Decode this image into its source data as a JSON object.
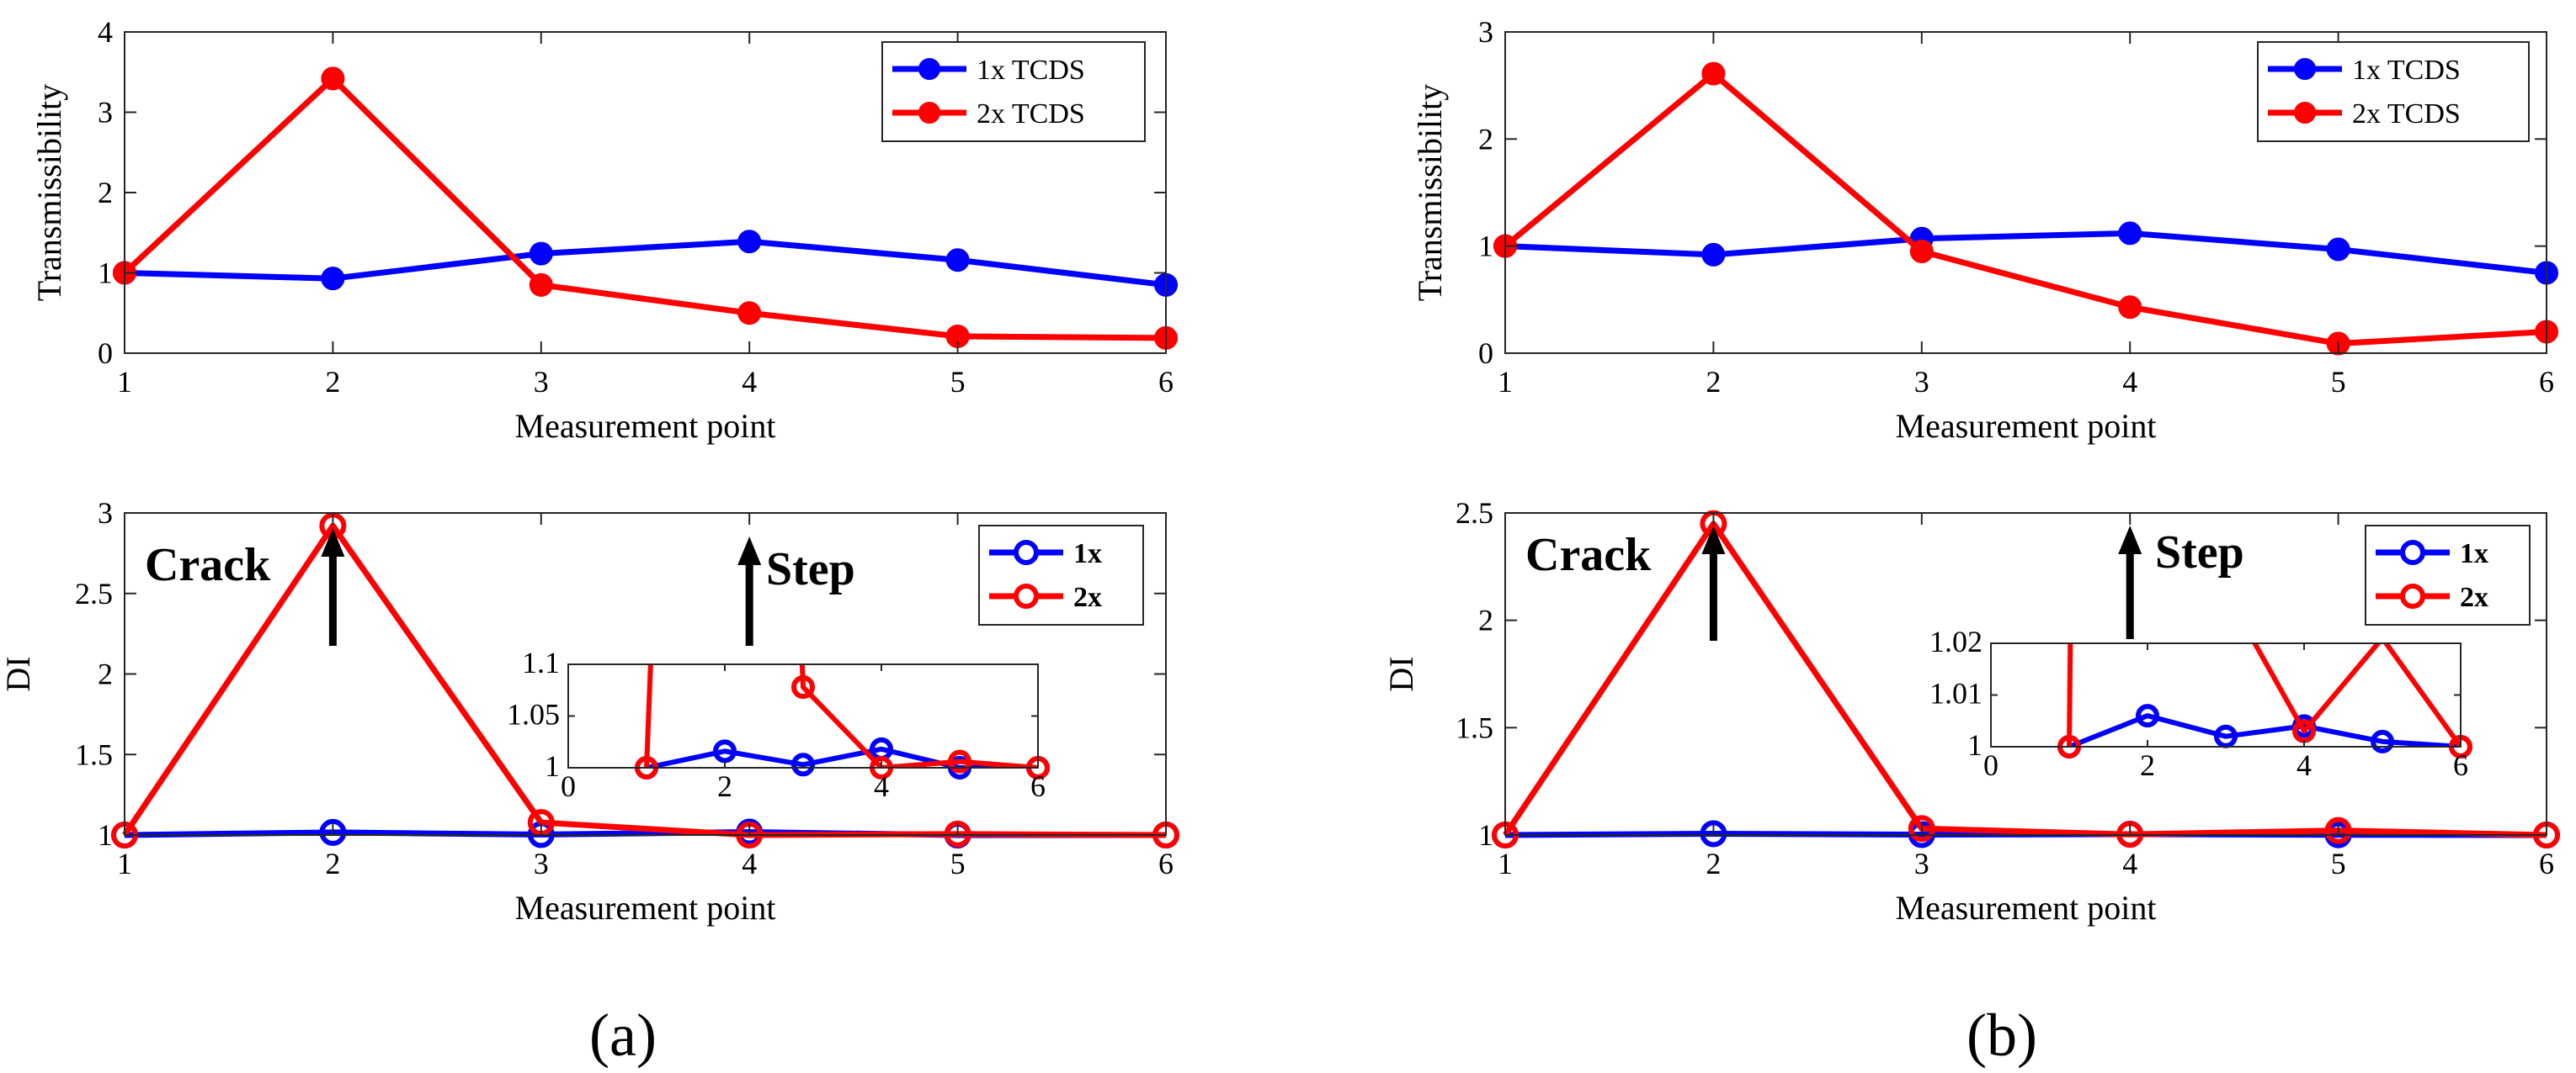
{
  "figure_labels": [
    "(a)",
    "(b)"
  ],
  "chart_data": [
    {
      "id": "a-top",
      "type": "line",
      "title": "",
      "xlabel": "Measurement point",
      "ylabel": "Transmissibility",
      "xlim": [
        1,
        6
      ],
      "ylim": [
        0,
        4
      ],
      "xticks": [
        "1",
        "2",
        "3",
        "4",
        "5",
        "6"
      ],
      "yticks": [
        "0",
        "1",
        "2",
        "3",
        "4"
      ],
      "legend_position": "top-right",
      "legend_style": "normal",
      "series": [
        {
          "name": "1x TCDS",
          "color": "#0000ff",
          "marker": "filled",
          "x": [
            1,
            2,
            3,
            4,
            5,
            6
          ],
          "y": [
            1.0,
            0.93,
            1.24,
            1.39,
            1.16,
            0.85
          ]
        },
        {
          "name": "2x TCDS",
          "color": "#ff0000",
          "marker": "filled",
          "x": [
            1,
            2,
            3,
            4,
            5,
            6
          ],
          "y": [
            1.0,
            3.42,
            0.85,
            0.5,
            0.21,
            0.19
          ]
        }
      ]
    },
    {
      "id": "a-bottom",
      "type": "line",
      "title": "",
      "xlabel": "Measurement point",
      "ylabel": "DI",
      "xlim": [
        1,
        6
      ],
      "ylim": [
        1,
        3
      ],
      "xticks": [
        "1",
        "2",
        "3",
        "4",
        "5",
        "6"
      ],
      "yticks": [
        "1",
        "1.5",
        "2",
        "2.5",
        "3"
      ],
      "legend_position": "top-right",
      "legend_style": "bold",
      "annotations": [
        {
          "text": "Crack",
          "arrow_x": 2
        },
        {
          "text": "Step",
          "arrow_x": 4
        }
      ],
      "series": [
        {
          "name": "1x",
          "color": "#0000ff",
          "marker": "open",
          "x": [
            1,
            2,
            3,
            4,
            5,
            6
          ],
          "y": [
            1.0,
            1.016,
            1.003,
            1.018,
            1.0,
            1.0
          ]
        },
        {
          "name": "2x",
          "color": "#ff0000",
          "marker": "open",
          "x": [
            1,
            2,
            3,
            4,
            5,
            6
          ],
          "y": [
            1.0,
            2.92,
            1.078,
            1.0,
            1.006,
            1.0
          ]
        }
      ],
      "inset": {
        "xlim": [
          0,
          6
        ],
        "ylim": [
          1,
          1.1
        ],
        "xticks": [
          "0",
          "2",
          "4",
          "6"
        ],
        "yticks": [
          "1",
          "1.05",
          "1.1"
        ]
      }
    },
    {
      "id": "b-top",
      "type": "line",
      "title": "",
      "xlabel": "Measurement point",
      "ylabel": "Transmissibility",
      "xlim": [
        1,
        6
      ],
      "ylim": [
        0,
        3
      ],
      "xticks": [
        "1",
        "2",
        "3",
        "4",
        "5",
        "6"
      ],
      "yticks": [
        "0",
        "1",
        "2",
        "3"
      ],
      "legend_position": "top-right",
      "legend_style": "normal",
      "series": [
        {
          "name": "1x TCDS",
          "color": "#0000ff",
          "marker": "filled",
          "x": [
            1,
            2,
            3,
            4,
            5,
            6
          ],
          "y": [
            1.0,
            0.92,
            1.07,
            1.12,
            0.97,
            0.75
          ]
        },
        {
          "name": "2x TCDS",
          "color": "#ff0000",
          "marker": "filled",
          "x": [
            1,
            2,
            3,
            4,
            5,
            6
          ],
          "y": [
            1.0,
            2.61,
            0.95,
            0.43,
            0.09,
            0.2
          ]
        }
      ]
    },
    {
      "id": "b-bottom",
      "type": "line",
      "title": "",
      "xlabel": "Measurement point",
      "ylabel": "DI",
      "xlim": [
        1,
        6
      ],
      "ylim": [
        1,
        2.5
      ],
      "xticks": [
        "1",
        "2",
        "3",
        "4",
        "5",
        "6"
      ],
      "yticks": [
        "1",
        "1.5",
        "2",
        "2.5"
      ],
      "legend_position": "top-right",
      "legend_style": "bold",
      "annotations": [
        {
          "text": "Crack",
          "arrow_x": 2
        },
        {
          "text": "Step",
          "arrow_x": 4
        }
      ],
      "series": [
        {
          "name": "1x",
          "color": "#0000ff",
          "marker": "open",
          "x": [
            1,
            2,
            3,
            4,
            5,
            6
          ],
          "y": [
            1.0,
            1.006,
            1.002,
            1.004,
            1.001,
            1.0
          ]
        },
        {
          "name": "2x",
          "color": "#ff0000",
          "marker": "open",
          "x": [
            1,
            2,
            3,
            4,
            5,
            6
          ],
          "y": [
            1.0,
            2.45,
            1.03,
            1.003,
            1.021,
            1.0
          ]
        }
      ],
      "inset": {
        "xlim": [
          0,
          6
        ],
        "ylim": [
          1,
          1.02
        ],
        "xticks": [
          "0",
          "2",
          "4",
          "6"
        ],
        "yticks": [
          "1",
          "1.01",
          "1.02"
        ]
      }
    }
  ]
}
